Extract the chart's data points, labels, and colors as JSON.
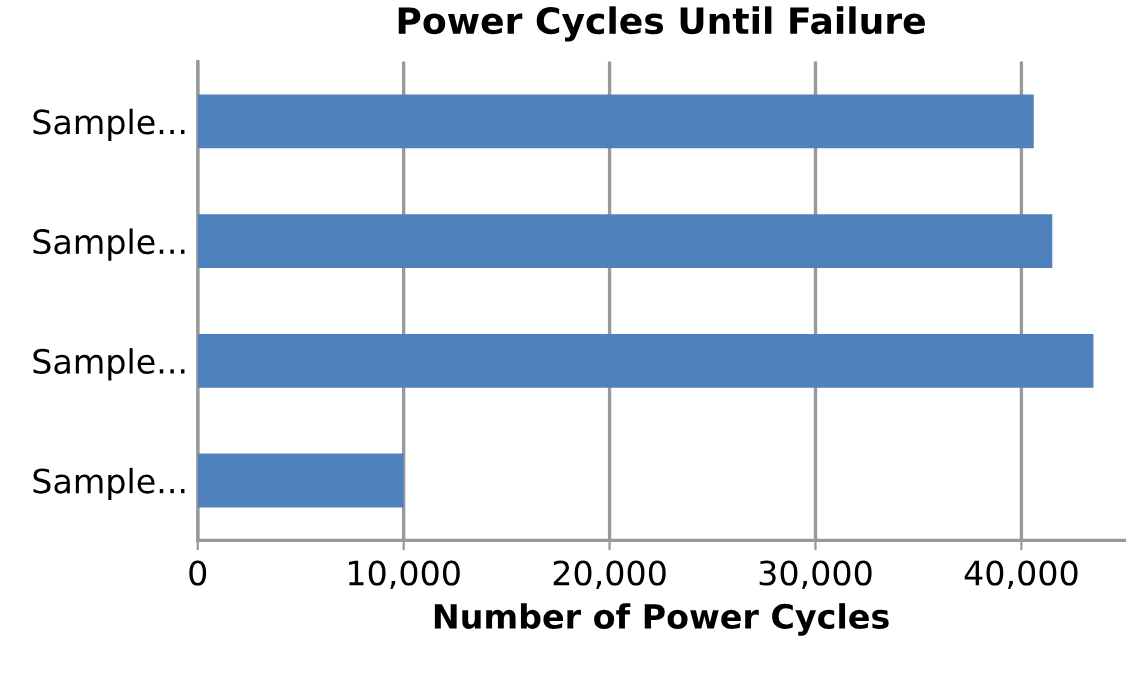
{
  "chart_data": {
    "type": "bar",
    "orientation": "horizontal",
    "title": "Power Cycles Until Failure",
    "xlabel": "Number of Power Cycles",
    "categories": [
      "Sample...",
      "Sample...",
      "Sample...",
      "Sample..."
    ],
    "values": [
      40600,
      41500,
      43500,
      10000
    ],
    "color": "#4f81bd",
    "xlim": [
      0,
      45000
    ],
    "xticks": [
      0,
      {
        "value": 10000,
        "label": "10,000"
      },
      {
        "value": 20000,
        "label": "20,000"
      },
      {
        "value": 30000,
        "label": "30,000"
      },
      {
        "value": 40000,
        "label": "40,000"
      }
    ],
    "grid": "x"
  }
}
